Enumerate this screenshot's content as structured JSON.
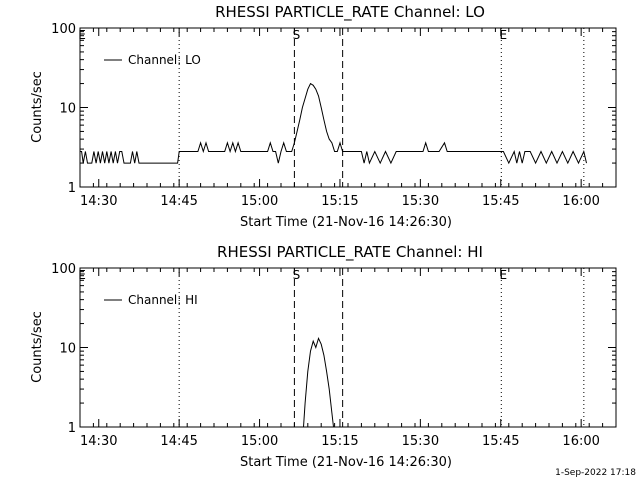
{
  "footer_timestamp": "1-Sep-2022 17:18",
  "chart_data": [
    {
      "type": "line",
      "title": "RHESSI PARTICLE_RATE Channel: LO",
      "xlabel": "Start Time (21-Nov-16 14:26:30)",
      "ylabel": "Counts/sec",
      "yscale": "log",
      "ylim": [
        1,
        100
      ],
      "y_ticks": [
        "1",
        "10",
        "100"
      ],
      "x_ticks": [
        "14:30",
        "14:45",
        "15:00",
        "15:15",
        "15:30",
        "15:45",
        "16:00"
      ],
      "x_tick_minutes": [
        3.5,
        18.5,
        33.5,
        48.5,
        63.5,
        78.5,
        93.5
      ],
      "xlim_minutes": [
        0,
        100
      ],
      "legend": {
        "label": "Channel: LO",
        "placement": "top-left"
      },
      "markers": [
        {
          "label": "E",
          "minute": 0,
          "style": "dotted"
        },
        {
          "label": "",
          "minute": 18.5,
          "style": "dotted"
        },
        {
          "label": "S",
          "minute": 40,
          "style": "dashed"
        },
        {
          "label": "",
          "minute": 49,
          "style": "dashed"
        },
        {
          "label": "E",
          "minute": 78.6,
          "style": "dotted"
        },
        {
          "label": "",
          "minute": 94,
          "style": "dotted"
        }
      ],
      "series": [
        {
          "name": "Channel: LO",
          "x": [
            0,
            0.3,
            0.6,
            1,
            1.4,
            1.8,
            2.2,
            2.6,
            3.0,
            3.4,
            3.8,
            4.2,
            4.6,
            5.0,
            5.4,
            5.8,
            6.2,
            6.6,
            7.0,
            7.4,
            7.8,
            8.2,
            8.6,
            9.0,
            9.4,
            9.8,
            10.2,
            10.6,
            11.0,
            11.4,
            11.8,
            12.2,
            12.6,
            13.0,
            13.4,
            13.8,
            14.2,
            14.6,
            15.0,
            15.4,
            15.8,
            16.2,
            16.6,
            17.0,
            17.4,
            17.8,
            18.2,
            18.5,
            19,
            20,
            21,
            22,
            22.5,
            23,
            23.5,
            24,
            25,
            26,
            27,
            27.5,
            28,
            28.5,
            29,
            29.5,
            30,
            31,
            32,
            33,
            34,
            35,
            35.5,
            36,
            36.5,
            37,
            37.5,
            38,
            38.5,
            39,
            39.5,
            40,
            40.5,
            41,
            41.5,
            42,
            42.5,
            43,
            43.5,
            44,
            44.5,
            45,
            45.5,
            46,
            46.5,
            47,
            47.5,
            48,
            48.5,
            49,
            49.5,
            50,
            51,
            52,
            52.5,
            53,
            53.5,
            54,
            55,
            56,
            57,
            58,
            59,
            60,
            61,
            62,
            63,
            63.5,
            64,
            64.5,
            65,
            66,
            67,
            68,
            68.5,
            69,
            70,
            71,
            72,
            73,
            74,
            75,
            76,
            77,
            78,
            78.6,
            79,
            80,
            81,
            81.5,
            82,
            82.5,
            83,
            84,
            85,
            86,
            87,
            88,
            89,
            90,
            91,
            92,
            93,
            94,
            94.5
          ],
          "values": [
            2.8,
            2.8,
            2.0,
            2.8,
            2.0,
            2.0,
            2.0,
            2.8,
            2.0,
            2.8,
            2.0,
            2.8,
            2.0,
            2.8,
            2.0,
            2.8,
            2.0,
            2.8,
            2.0,
            2.8,
            2.8,
            2.0,
            2.0,
            2.0,
            2.0,
            2.8,
            2.0,
            2.8,
            2.0,
            2.0,
            2.0,
            2.0,
            2.0,
            2.0,
            2.0,
            2.0,
            2.0,
            2.0,
            2.0,
            2.0,
            2.0,
            2.0,
            2.0,
            2.0,
            2.0,
            2.0,
            2.0,
            2.8,
            2.8,
            2.8,
            2.8,
            2.8,
            3.6,
            2.8,
            3.6,
            2.8,
            2.8,
            2.8,
            2.8,
            3.6,
            2.8,
            3.6,
            2.8,
            3.6,
            2.8,
            2.8,
            2.8,
            2.8,
            2.8,
            2.8,
            3.6,
            2.8,
            2.8,
            2.0,
            2.8,
            3.6,
            2.8,
            2.8,
            2.8,
            3.6,
            5.0,
            7.0,
            10.0,
            13.0,
            17.0,
            20.0,
            19.0,
            17.0,
            14.0,
            10.0,
            7.0,
            5.0,
            4.0,
            3.6,
            2.8,
            2.8,
            3.6,
            2.8,
            2.8,
            2.8,
            2.8,
            2.8,
            2.8,
            2.0,
            2.8,
            2.0,
            2.8,
            2.0,
            2.8,
            2.0,
            2.8,
            2.8,
            2.8,
            2.8,
            2.8,
            2.8,
            2.8,
            3.6,
            2.8,
            2.8,
            2.8,
            3.6,
            2.8,
            2.8,
            2.8,
            2.8,
            2.8,
            2.8,
            2.8,
            2.8,
            2.8,
            2.8,
            2.8,
            2.8,
            2.8,
            2.0,
            2.8,
            2.0,
            2.8,
            2.0,
            2.8,
            2.8,
            2.0,
            2.8,
            2.0,
            2.8,
            2.0,
            2.8,
            2.0,
            2.8,
            2.0,
            2.8,
            2.0
          ]
        }
      ]
    },
    {
      "type": "line",
      "title": "RHESSI PARTICLE_RATE Channel: HI",
      "xlabel": "Start Time (21-Nov-16 14:26:30)",
      "ylabel": "Counts/sec",
      "yscale": "log",
      "ylim": [
        1,
        100
      ],
      "y_ticks": [
        "1",
        "10",
        "100"
      ],
      "x_ticks": [
        "14:30",
        "14:45",
        "15:00",
        "15:15",
        "15:30",
        "15:45",
        "16:00"
      ],
      "x_tick_minutes": [
        3.5,
        18.5,
        33.5,
        48.5,
        63.5,
        78.5,
        93.5
      ],
      "xlim_minutes": [
        0,
        100
      ],
      "legend": {
        "label": "Channel: HI",
        "placement": "top-left"
      },
      "markers": [
        {
          "label": "E",
          "minute": 0,
          "style": "dotted"
        },
        {
          "label": "",
          "minute": 18.5,
          "style": "dotted"
        },
        {
          "label": "S",
          "minute": 40,
          "style": "dashed"
        },
        {
          "label": "",
          "minute": 49,
          "style": "dashed"
        },
        {
          "label": "E",
          "minute": 78.6,
          "style": "dotted"
        },
        {
          "label": "",
          "minute": 94,
          "style": "dotted"
        }
      ],
      "series": [
        {
          "name": "Channel: HI",
          "x": [
            41.7,
            42.0,
            42.5,
            43.0,
            43.5,
            44.0,
            44.5,
            45.0,
            45.5,
            46.0,
            46.5,
            47.0,
            47.3
          ],
          "values": [
            1.0,
            2.0,
            5.0,
            9.0,
            12.0,
            10.0,
            13.0,
            11.0,
            8.0,
            5.0,
            3.0,
            1.5,
            1.0
          ]
        }
      ]
    }
  ]
}
